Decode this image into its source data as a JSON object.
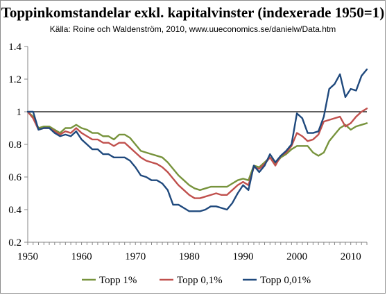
{
  "chart_data": {
    "type": "line",
    "title": "Toppinkomstandelar exkl. kapitalvinster (indexerade 1950=1)",
    "subtitle": "Källa: Roine och Waldenström, 2010, www.uueconomics.se/danielw/Data.htm",
    "xlabel": "",
    "ylabel": "",
    "xlim": [
      1950,
      2013
    ],
    "ylim": [
      0.2,
      1.4
    ],
    "x_ticks": [
      1950,
      1960,
      1970,
      1980,
      1990,
      2000,
      2010
    ],
    "y_ticks": [
      0.2,
      0.4,
      0.6,
      0.8,
      1,
      1.2,
      1.4
    ],
    "x_tick_labels": [
      "1950",
      "1960",
      "1970",
      "1980",
      "1990",
      "2000",
      "2010"
    ],
    "y_tick_labels": [
      "0.2",
      "0.4",
      "0.6",
      "0.8",
      "1",
      "1.2",
      "1.4"
    ],
    "reference_line": 1,
    "grid": false,
    "legend_position": "bottom",
    "x": [
      1950,
      1951,
      1952,
      1953,
      1954,
      1955,
      1956,
      1957,
      1958,
      1959,
      1960,
      1961,
      1962,
      1963,
      1964,
      1965,
      1966,
      1967,
      1968,
      1969,
      1970,
      1971,
      1972,
      1973,
      1974,
      1975,
      1976,
      1977,
      1978,
      1979,
      1980,
      1981,
      1982,
      1983,
      1984,
      1985,
      1986,
      1987,
      1988,
      1989,
      1990,
      1991,
      1992,
      1993,
      1994,
      1995,
      1996,
      1997,
      1998,
      1999,
      2000,
      2001,
      2002,
      2003,
      2004,
      2005,
      2006,
      2007,
      2008,
      2009,
      2010,
      2011,
      2012,
      2013
    ],
    "series": [
      {
        "name": "Topp 1%",
        "color": "#77933c",
        "values": [
          1,
          0.97,
          0.9,
          0.91,
          0.91,
          0.89,
          0.87,
          0.9,
          0.9,
          0.92,
          0.9,
          0.89,
          0.87,
          0.87,
          0.85,
          0.85,
          0.83,
          0.86,
          0.86,
          0.84,
          0.8,
          0.76,
          0.75,
          0.74,
          0.73,
          0.72,
          0.69,
          0.65,
          0.61,
          0.58,
          0.55,
          0.53,
          0.52,
          0.53,
          0.54,
          0.54,
          0.54,
          0.54,
          0.56,
          0.58,
          0.59,
          0.58,
          0.67,
          0.66,
          0.69,
          0.72,
          0.68,
          0.72,
          0.74,
          0.77,
          0.79,
          0.79,
          0.79,
          0.75,
          0.73,
          0.75,
          0.82,
          0.86,
          0.9,
          0.92,
          0.89,
          0.91,
          0.92,
          0.93
        ]
      },
      {
        "name": "Topp 0,1%",
        "color": "#c0504d",
        "values": [
          1,
          0.96,
          0.89,
          0.9,
          0.9,
          0.88,
          0.86,
          0.88,
          0.87,
          0.9,
          0.87,
          0.85,
          0.83,
          0.83,
          0.81,
          0.81,
          0.79,
          0.81,
          0.81,
          0.78,
          0.75,
          0.72,
          0.7,
          0.69,
          0.68,
          0.66,
          0.63,
          0.59,
          0.55,
          0.52,
          0.49,
          0.47,
          0.47,
          0.48,
          0.49,
          0.5,
          0.49,
          0.49,
          0.52,
          0.55,
          0.57,
          0.55,
          0.66,
          0.65,
          0.68,
          0.72,
          0.67,
          0.73,
          0.75,
          0.79,
          0.87,
          0.85,
          0.82,
          0.83,
          0.86,
          0.94,
          0.95,
          0.96,
          0.97,
          0.91,
          0.93,
          0.97,
          1,
          1.02
        ]
      },
      {
        "name": "Topp 0,01%",
        "color": "#1f497d",
        "values": [
          1,
          1,
          0.89,
          0.9,
          0.9,
          0.87,
          0.85,
          0.86,
          0.85,
          0.88,
          0.83,
          0.8,
          0.77,
          0.77,
          0.74,
          0.74,
          0.72,
          0.72,
          0.72,
          0.7,
          0.66,
          0.61,
          0.6,
          0.58,
          0.58,
          0.56,
          0.52,
          0.43,
          0.43,
          0.41,
          0.39,
          0.39,
          0.39,
          0.4,
          0.42,
          0.42,
          0.41,
          0.4,
          0.44,
          0.5,
          0.55,
          0.52,
          0.67,
          0.63,
          0.67,
          0.74,
          0.69,
          0.73,
          0.76,
          0.8,
          0.99,
          0.96,
          0.87,
          0.87,
          0.88,
          0.97,
          1.14,
          1.17,
          1.23,
          1.09,
          1.14,
          1.13,
          1.22,
          1.26
        ]
      }
    ]
  }
}
